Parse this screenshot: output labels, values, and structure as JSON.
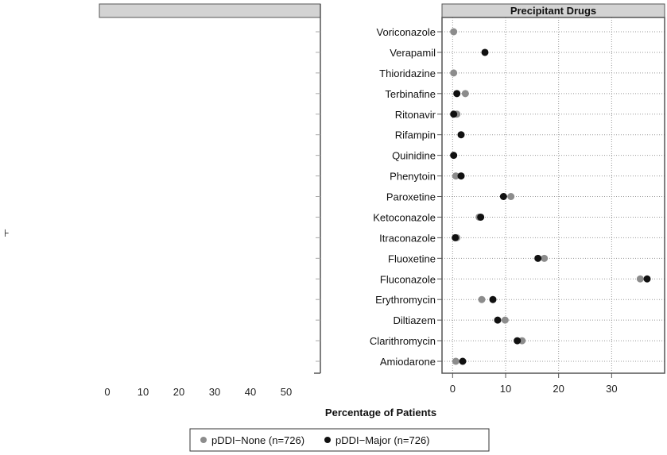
{
  "chart_data": {
    "type": "scatter",
    "panels": [
      {
        "strip": "",
        "xticks": [
          "0",
          "10",
          "20",
          "30",
          "40",
          "50"
        ],
        "xlim": [
          -2,
          60
        ]
      },
      {
        "strip": "Precipitant Drugs",
        "xticks": [
          "0",
          "10",
          "20",
          "30"
        ],
        "xlim": [
          -2,
          40
        ]
      }
    ],
    "xlabel": "Percentage of Patients",
    "categories": [
      "Voriconazole",
      "Verapamil",
      "Thioridazine",
      "Terbinafine",
      "Ritonavir",
      "Rifampin",
      "Quinidine",
      "Phenytoin",
      "Paroxetine",
      "Ketoconazole",
      "Itraconazole",
      "Fluoxetine",
      "Fluconazole",
      "Erythromycin",
      "Diltiazem",
      "Clarithromycin",
      "Amiodarone"
    ],
    "series": [
      {
        "name": "pDDI−None (n=726)",
        "color": "#8c8c8c",
        "values": [
          0.2,
          null,
          0.2,
          2.4,
          0.8,
          null,
          null,
          0.6,
          11.0,
          5.0,
          0.8,
          17.3,
          35.4,
          5.5,
          9.9,
          13.1,
          0.6
        ]
      },
      {
        "name": "pDDI−Major (n=726)",
        "color": "#111111",
        "values": [
          null,
          6.1,
          null,
          0.8,
          0.2,
          1.6,
          0.2,
          1.6,
          9.6,
          5.3,
          0.5,
          16.1,
          36.7,
          7.6,
          8.5,
          12.2,
          1.9
        ]
      }
    ],
    "grid": true,
    "legend": "bottom",
    "strip_color": "#d3d3d3"
  }
}
